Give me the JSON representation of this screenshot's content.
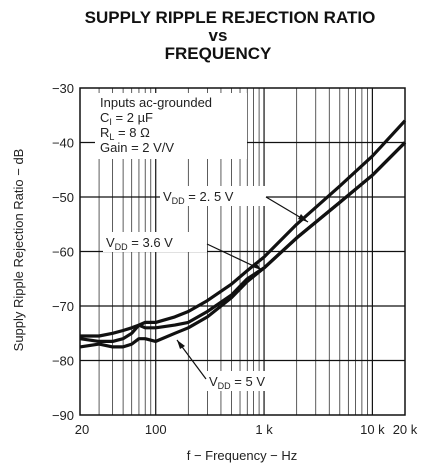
{
  "chart_data": {
    "type": "line",
    "title": [
      "SUPPLY RIPPLE REJECTION RATIO",
      "vs",
      "FREQUENCY"
    ],
    "xlabel": "f − Frequency − Hz",
    "ylabel": "Supply Ripple Rejection Ratio − dB",
    "x_scale": "log",
    "xlim": [
      20,
      20000
    ],
    "ylim": [
      -90,
      -30
    ],
    "x_ticks": [
      {
        "value": 20,
        "label": "20"
      },
      {
        "value": 100,
        "label": "100"
      },
      {
        "value": 1000,
        "label": "1 k"
      },
      {
        "value": 10000,
        "label": "10 k"
      },
      {
        "value": 20000,
        "label": "20 k"
      }
    ],
    "y_ticks": [
      {
        "value": -30,
        "label": "−30"
      },
      {
        "value": -40,
        "label": "−40"
      },
      {
        "value": -50,
        "label": "−50"
      },
      {
        "value": -60,
        "label": "−60"
      },
      {
        "value": -70,
        "label": "−70"
      },
      {
        "value": -80,
        "label": "−80"
      },
      {
        "value": -90,
        "label": "−90"
      }
    ],
    "grid": true,
    "conditions": [
      "Inputs ac-grounded",
      "CI = 2 µF",
      "RL = 8 Ω",
      "Gain = 2 V/V"
    ],
    "series": [
      {
        "name": "VDD = 2.5 V",
        "x": [
          20,
          30,
          40,
          50,
          60,
          70,
          80,
          100,
          150,
          200,
          300,
          500,
          700,
          1000,
          2000,
          5000,
          10000,
          20000
        ],
        "y": [
          -75.5,
          -75.5,
          -75,
          -74.5,
          -74,
          -73.5,
          -73,
          -73,
          -72,
          -71,
          -69,
          -66,
          -63.5,
          -61,
          -55,
          -48,
          -42.5,
          -36
        ]
      },
      {
        "name": "VDD = 3.6 V",
        "x": [
          20,
          30,
          40,
          50,
          60,
          70,
          80,
          100,
          150,
          200,
          300,
          500,
          700,
          1000,
          2000,
          5000,
          10000,
          20000
        ],
        "y": [
          -76,
          -76.5,
          -76.5,
          -76,
          -75,
          -73.5,
          -74,
          -74,
          -73.5,
          -73,
          -71,
          -68,
          -65,
          -63,
          -57.5,
          -51,
          -46,
          -40
        ]
      },
      {
        "name": "VDD = 5 V",
        "x": [
          20,
          30,
          40,
          50,
          60,
          70,
          80,
          100,
          150,
          200,
          300,
          500,
          700,
          1000,
          2000,
          5000,
          10000,
          20000
        ],
        "y": [
          -77.5,
          -77,
          -77.5,
          -77.5,
          -77,
          -76,
          -76,
          -76.5,
          -75,
          -74,
          -72,
          -68.5,
          -65.5,
          -63,
          -57.5,
          -51,
          -46,
          -40
        ]
      }
    ],
    "annotations": [
      {
        "main": "V",
        "sub": "DD",
        "rest": " = 2. 5 V"
      },
      {
        "main": "V",
        "sub": "DD",
        "rest": " = 3.6 V"
      },
      {
        "main": "V",
        "sub": "DD",
        "rest": " = 5 V"
      }
    ]
  }
}
